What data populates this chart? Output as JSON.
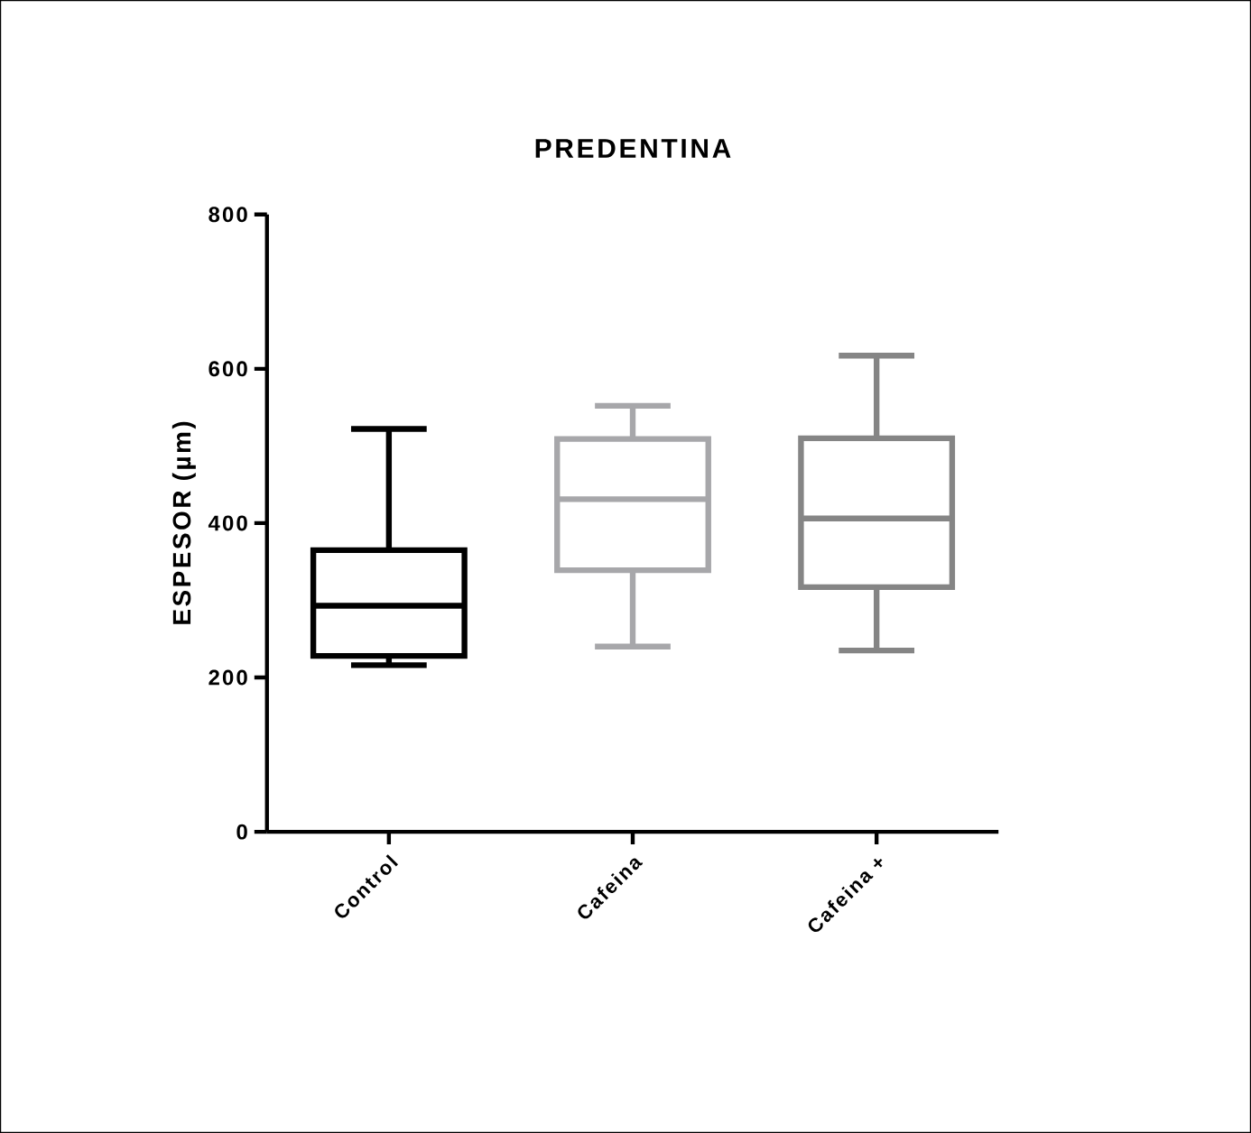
{
  "chart_data": {
    "type": "box",
    "title": "PREDENTINA",
    "ylabel": "ESPESOR (µm)",
    "categories": [
      "Control",
      "Cafeina",
      "Cafeina +"
    ],
    "boxes": [
      {
        "low": 216,
        "q1": 228,
        "median": 293,
        "q3": 365,
        "high": 522
      },
      {
        "low": 240,
        "q1": 339,
        "median": 431,
        "q3": 509,
        "high": 552
      },
      {
        "low": 235,
        "q1": 317,
        "median": 406,
        "q3": 510,
        "high": 617
      }
    ],
    "colors": [
      "#000000",
      "#a7a7aa",
      "#858585"
    ],
    "ylim": [
      0,
      800
    ],
    "yticks": [
      0,
      200,
      400,
      600,
      800
    ]
  }
}
